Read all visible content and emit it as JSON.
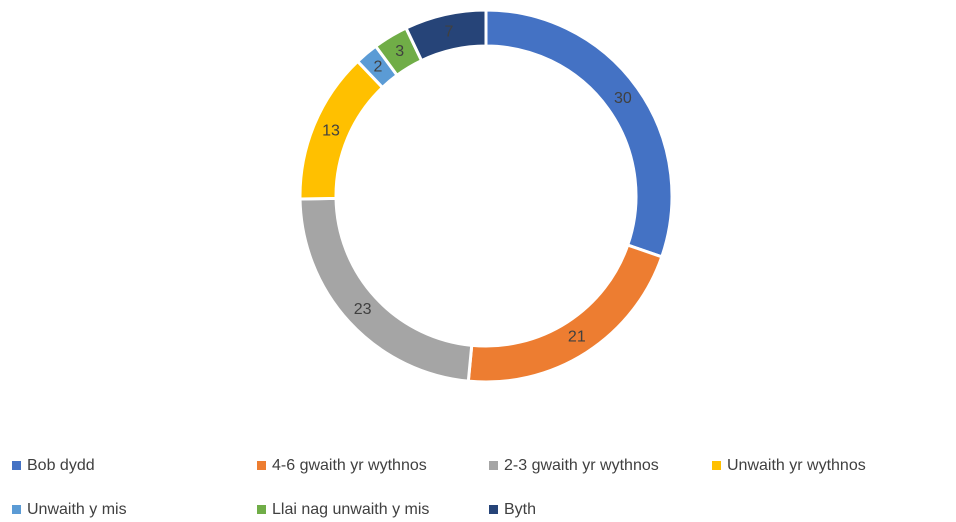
{
  "chart_data": {
    "type": "donut",
    "categories": [
      "Bob dydd",
      "4-6 gwaith yr wythnos",
      "2-3 gwaith yr wythnos",
      "Unwaith yr wythnos",
      "Unwaith y mis",
      "Llai nag unwaith y mis",
      "Byth"
    ],
    "values": [
      30,
      21,
      23,
      13,
      2,
      3,
      7
    ],
    "colors": [
      "#4472c4",
      "#ed7d31",
      "#a5a5a5",
      "#ffc000",
      "#5b9bd5",
      "#70ad47",
      "#264478"
    ],
    "legend": "bottom"
  }
}
